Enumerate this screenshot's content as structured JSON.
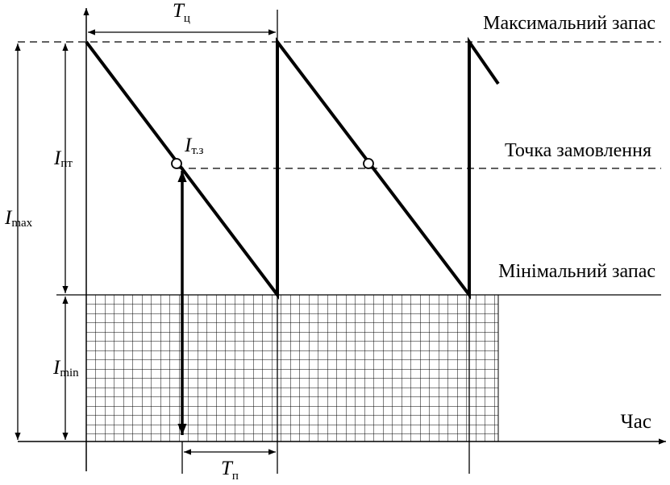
{
  "labels": {
    "max_stock": "Максимальний запас",
    "order_point": "Точка замовлення",
    "min_stock": "Мінімальний запас",
    "time_axis": "Час",
    "cycle_period": {
      "symbol": "T",
      "subscript": "ц"
    },
    "delivery_period": {
      "symbol": "T",
      "subscript": "п"
    },
    "order_point_level": {
      "symbol": "I",
      "subscript": "т.з"
    },
    "current_stock": {
      "symbol": "I",
      "subscript": "пт"
    },
    "max_level": {
      "symbol": "I",
      "subscript": "max"
    },
    "min_level": {
      "symbol": "I",
      "subscript": "min"
    }
  }
}
